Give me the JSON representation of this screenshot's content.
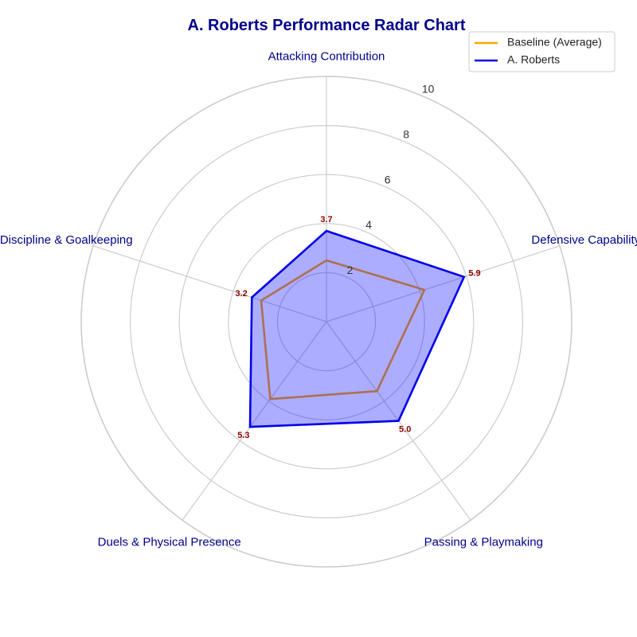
{
  "chart_data": {
    "type": "radar",
    "title": "A. Roberts Performance Radar Chart",
    "categories": [
      "Attacking Contribution",
      "Defensive Capability",
      "Passing & Playmaking",
      "Duels & Physical Presence",
      "Discipline & Goalkeeping"
    ],
    "rlim": [
      0,
      10
    ],
    "rticks": [
      "2",
      "4",
      "6",
      "8",
      "10"
    ],
    "grid": true,
    "legend_position": "top-right",
    "series": [
      {
        "name": "Baseline (Average)",
        "values": [
          2.5,
          4.2,
          3.5,
          3.9,
          2.8
        ],
        "color": "#FFA500",
        "fill": false
      },
      {
        "name": "A. Roberts",
        "values": [
          3.7,
          5.9,
          5.0,
          5.3,
          3.2
        ],
        "color": "#0000EE",
        "fill": true,
        "fill_color": "#0000FF"
      }
    ],
    "value_labels": [
      "3.7",
      "5.9",
      "5.0",
      "5.3",
      "3.2"
    ]
  },
  "colors": {
    "title": "#00008B",
    "category_label": "#00008B",
    "value_label": "#8B0000",
    "grid": "#CCCCCC"
  }
}
